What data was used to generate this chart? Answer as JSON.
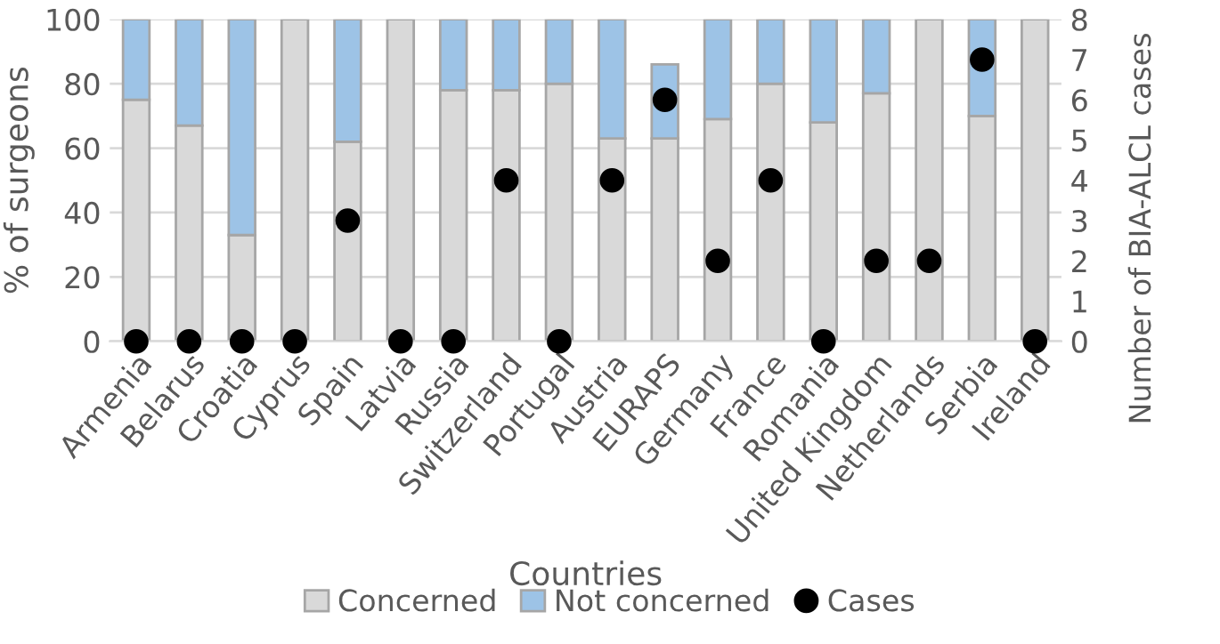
{
  "chart_data": {
    "type": "bar",
    "stacked": true,
    "xlabel": "Countries",
    "ylabel": "% of surgeons",
    "y2label": "Number of BIA-ALCL cases",
    "categories": [
      "Armenia",
      "Belarus",
      "Croatia",
      "Cyprus",
      "Spain",
      "Latvia",
      "Russia",
      "Switzerland",
      "Portugal",
      "Austria",
      "EURAPS",
      "Germany",
      "France",
      "Romania",
      "United Kingdom",
      "Netherlands",
      "Serbia",
      "Ireland"
    ],
    "series": [
      {
        "name": "Concerned",
        "color": "#d9d9d9",
        "values": [
          75,
          67,
          33,
          100,
          62,
          100,
          78,
          78,
          80,
          63,
          63,
          69,
          80,
          68,
          77,
          100,
          70,
          100
        ]
      },
      {
        "name": "Not concerned",
        "color": "#9dc3e6",
        "values": [
          25,
          33,
          67,
          0,
          38,
          0,
          22,
          22,
          20,
          37,
          23,
          31,
          20,
          32,
          23,
          0,
          30,
          0
        ]
      },
      {
        "name": "Cases",
        "type": "scatter",
        "axis": "y2",
        "color": "#000000",
        "marker": "circle",
        "values": [
          0,
          0,
          0,
          0,
          3,
          0,
          0,
          4,
          0,
          4,
          6,
          2,
          4,
          0,
          2,
          2,
          7,
          0
        ]
      }
    ],
    "ylim": [
      0,
      100
    ],
    "yticks": [
      0,
      20,
      40,
      60,
      80,
      100
    ],
    "y2lim": [
      0,
      8
    ],
    "y2ticks": [
      0,
      1,
      2,
      3,
      4,
      5,
      6,
      7,
      8
    ],
    "grid": "y",
    "legend": "bottom"
  }
}
